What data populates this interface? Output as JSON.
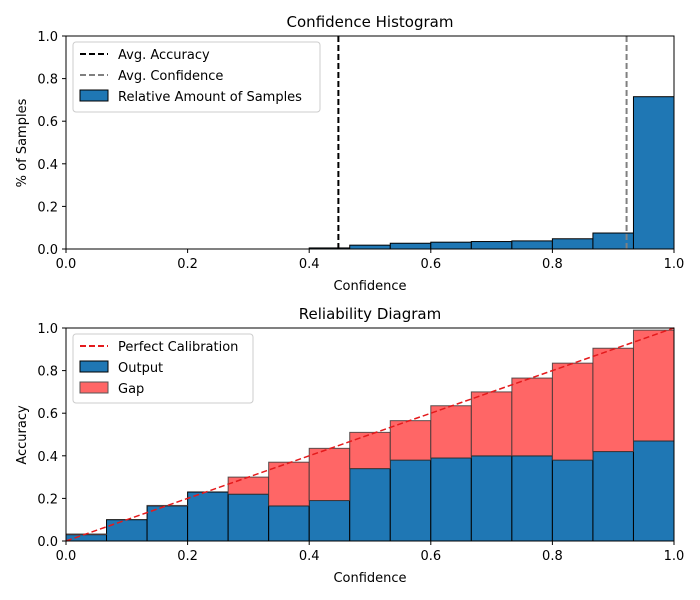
{
  "chart_data": [
    {
      "type": "bar",
      "title": "Confidence Histogram",
      "xlabel": "Confidence",
      "ylabel": "% of Samples",
      "xlim": [
        0,
        1
      ],
      "ylim": [
        0,
        1
      ],
      "xticks": [
        "0.0",
        "0.2",
        "0.4",
        "0.6",
        "0.8",
        "1.0"
      ],
      "yticks": [
        "0.0",
        "0.2",
        "0.4",
        "0.6",
        "0.8",
        "1.0"
      ],
      "bins": 15,
      "values": [
        0,
        0,
        0,
        0,
        0,
        0,
        0.005,
        0.018,
        0.027,
        0.032,
        0.035,
        0.038,
        0.048,
        0.075,
        0.715
      ],
      "avg_accuracy": 0.448,
      "avg_confidence": 0.922,
      "legend_position": "top-left",
      "legend": {
        "avg_accuracy": "Avg. Accuracy",
        "avg_confidence": "Avg. Confidence",
        "samples": "Relative Amount of Samples"
      },
      "colors": {
        "bar": "#1f77b4",
        "accuracy_line": "#000000",
        "confidence_line": "#808080"
      }
    },
    {
      "type": "bar",
      "title": "Reliability Diagram",
      "xlabel": "Confidence",
      "ylabel": "Accuracy",
      "xlim": [
        0,
        1
      ],
      "ylim": [
        0,
        1
      ],
      "xticks": [
        "0.0",
        "0.2",
        "0.4",
        "0.6",
        "0.8",
        "1.0"
      ],
      "yticks": [
        "0.0",
        "0.2",
        "0.4",
        "0.6",
        "0.8",
        "1.0"
      ],
      "bins": 15,
      "output": [
        0.03,
        0.1,
        0.165,
        0.23,
        0.22,
        0.165,
        0.19,
        0.34,
        0.38,
        0.39,
        0.4,
        0.4,
        0.38,
        0.42,
        0.47
      ],
      "expected": [
        0.033,
        0.1,
        0.167,
        0.23,
        0.3,
        0.37,
        0.435,
        0.51,
        0.565,
        0.635,
        0.7,
        0.765,
        0.835,
        0.905,
        0.99
      ],
      "legend_position": "top-left",
      "legend": {
        "perfect": "Perfect Calibration",
        "output": "Output",
        "gap": "Gap"
      },
      "colors": {
        "output": "#1f77b4",
        "gap": "#ff6666",
        "diagonal": "#e41a1c"
      }
    }
  ]
}
